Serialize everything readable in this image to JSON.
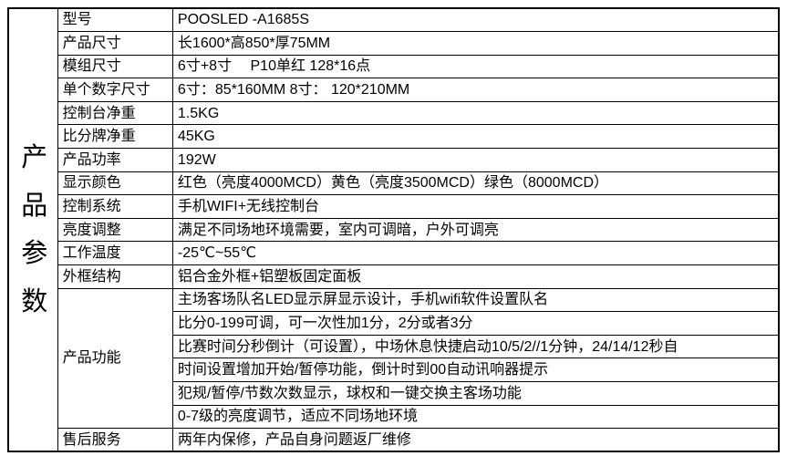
{
  "colors": {
    "border": "#000000",
    "background": "#ffffff",
    "text": "#000000"
  },
  "table": {
    "header_vertical": "产品参数",
    "header_chars": [
      "产",
      "品",
      "参",
      "数"
    ],
    "rows": [
      {
        "label": "型号",
        "value": "POOSLED -A1685S"
      },
      {
        "label": "产品尺寸",
        "value": "长1600*高850*厚75MM"
      },
      {
        "label": "模组尺寸",
        "value": "6寸+8寸　 P10单红 128*16点"
      },
      {
        "label": "单个数字尺寸",
        "value": "6寸：85*160MM 8寸： 120*210MM"
      },
      {
        "label": "控制台净重",
        "value": "1.5KG"
      },
      {
        "label": "比分牌净重",
        "value": "45KG"
      },
      {
        "label": "产品功率",
        "value": "192W"
      },
      {
        "label": "显示颜色",
        "value": "红色（亮度4000MCD）黄色（亮度3500MCD）绿色（8000MCD）"
      },
      {
        "label": "控制系统",
        "value": "手机WIFI+无线控制台"
      },
      {
        "label": "亮度调整",
        "value": "满足不同场地环境需要，室内可调暗，户外可调亮"
      },
      {
        "label": "工作温度",
        "value": "-25℃~55℃"
      },
      {
        "label": "外框结构",
        "value": "铝合金外框+铝塑板固定面板"
      },
      {
        "label": "产品功能",
        "values": [
          "主场客场队名LED显示屏显示设计，手机wifi软件设置队名",
          "比分0-199可调，可一次性加1分，2分或者3分",
          "比赛时间分秒倒计（可设置），中场休息快捷启动10/5/2//1分钟，24/14/12秒自",
          "时间设置增加开始/暂停功能，倒计时到00自动讯响器提示",
          "犯规/暂停/节数次数显示，球权和一键交换主客场功能",
          "0-7级的亮度调节，适应不同场地环境"
        ]
      },
      {
        "label": "售后服务",
        "value": "两年内保修，产品自身问题返厂维修"
      }
    ]
  }
}
